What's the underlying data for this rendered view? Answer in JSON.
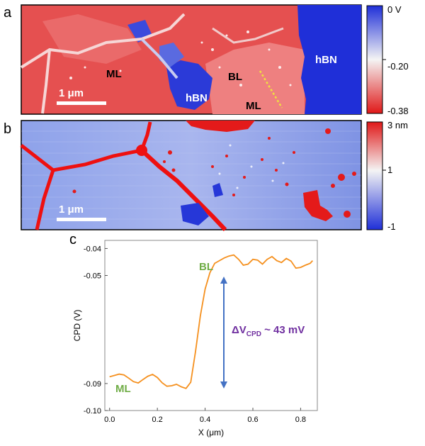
{
  "panels": {
    "a": {
      "letter": "a",
      "labels": {
        "ml_left": "ML",
        "hbn_center": "hBN",
        "bl": "BL",
        "ml_right": "ML",
        "hbn_right": "hBN"
      },
      "scalebar": "1 μm",
      "colorbar": {
        "top": "0 V",
        "mid": "-0.20",
        "bottom": "-0.38"
      },
      "colors": {
        "high": "#1f2fd8",
        "mid": "#f2f2f2",
        "low": "#e01818",
        "map_red": "#e84a4a",
        "map_blue": "#1f2fd8",
        "profile_line": "#f0e040"
      }
    },
    "b": {
      "letter": "b",
      "scalebar": "1 μm",
      "colorbar": {
        "top": "3 nm",
        "mid": "1",
        "bottom": "-1"
      },
      "colors": {
        "high": "#e01818",
        "mid": "#f2f2f2",
        "low": "#1f2fd8",
        "map_blue": "#7f96e8",
        "grain": "#f00000"
      }
    },
    "c": {
      "letter": "c",
      "label_bl": "BL",
      "label_ml": "ML",
      "delta_text": "ΔV",
      "delta_sub": "CPD",
      "delta_value": " ~ 43 mV",
      "colors": {
        "line": "#f5901e",
        "arrow": "#4472c4",
        "label_green": "#70ad47",
        "label_purple": "#7030a0"
      }
    }
  },
  "chart_data": {
    "type": "line",
    "title": "",
    "xlabel": "X (μm)",
    "ylabel": "CPD (V)",
    "xlim": [
      -0.02,
      0.87
    ],
    "ylim": [
      -0.1,
      -0.037
    ],
    "xticks": [
      "0.0",
      "0.2",
      "0.4",
      "0.6",
      "0.8"
    ],
    "yticks": [
      "-0.04",
      "-0.05",
      "-0.09",
      "-0.10"
    ],
    "x": [
      0.0,
      0.02,
      0.04,
      0.06,
      0.08,
      0.1,
      0.12,
      0.14,
      0.16,
      0.18,
      0.2,
      0.22,
      0.24,
      0.26,
      0.28,
      0.3,
      0.32,
      0.34,
      0.36,
      0.38,
      0.4,
      0.42,
      0.44,
      0.46,
      0.48,
      0.5,
      0.52,
      0.54,
      0.56,
      0.58,
      0.6,
      0.62,
      0.64,
      0.66,
      0.68,
      0.7,
      0.72,
      0.74,
      0.76,
      0.78,
      0.8,
      0.82,
      0.84,
      0.85
    ],
    "y": [
      -0.0875,
      -0.087,
      -0.0865,
      -0.0868,
      -0.088,
      -0.0893,
      -0.0898,
      -0.0885,
      -0.0873,
      -0.0866,
      -0.0878,
      -0.0897,
      -0.091,
      -0.0908,
      -0.0903,
      -0.0912,
      -0.0918,
      -0.0895,
      -0.078,
      -0.065,
      -0.055,
      -0.049,
      -0.0455,
      -0.0445,
      -0.0435,
      -0.0428,
      -0.0424,
      -0.044,
      -0.0462,
      -0.0458,
      -0.044,
      -0.0443,
      -0.0458,
      -0.044,
      -0.043,
      -0.0445,
      -0.0452,
      -0.0437,
      -0.0447,
      -0.0473,
      -0.047,
      -0.0462,
      -0.0455,
      -0.0445
    ]
  }
}
